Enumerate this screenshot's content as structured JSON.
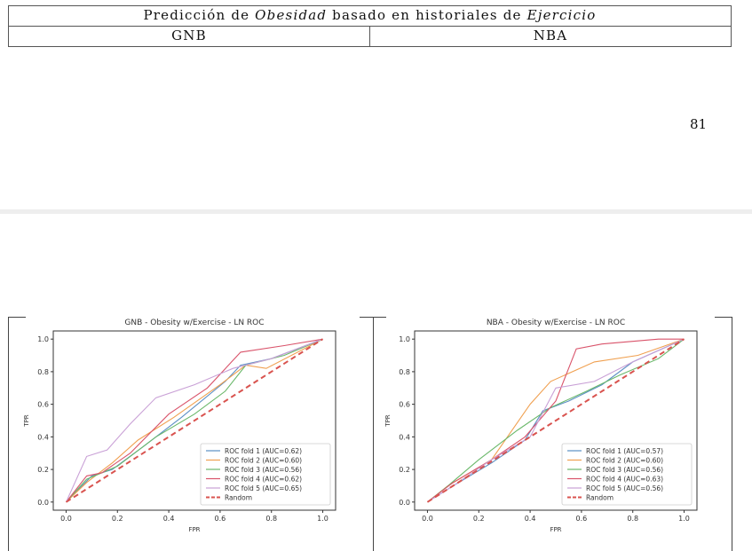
{
  "page": {
    "title_parts": [
      "Predicción de ",
      "Obesidad",
      " basado en historiales de ",
      "Ejercicio"
    ],
    "col_left": "GNB",
    "col_right": "NBA",
    "page_number": "81"
  },
  "chart_data": [
    {
      "type": "line",
      "title": "GNB - Obesity w/Exercise - LN ROC",
      "xlabel": "FPR",
      "ylabel": "TPR",
      "xlim": [
        -0.05,
        1.05
      ],
      "ylim": [
        -0.05,
        1.05
      ],
      "xticks": [
        "0.0",
        "0.2",
        "0.4",
        "0.6",
        "0.8",
        "1.0"
      ],
      "yticks": [
        "0.0",
        "0.2",
        "0.4",
        "0.6",
        "0.8",
        "1.0"
      ],
      "grid": false,
      "legend": "lower-right",
      "series": [
        {
          "name": "ROC fold 1 (AUC=0.62)",
          "color": "#5b8fc4",
          "x": [
            0,
            0.1,
            0.18,
            0.3,
            0.45,
            0.62,
            0.68,
            0.8,
            1.0
          ],
          "y": [
            0,
            0.16,
            0.2,
            0.34,
            0.52,
            0.74,
            0.84,
            0.88,
            1.0
          ]
        },
        {
          "name": "ROC fold 2 (AUC=0.60)",
          "color": "#f0a050",
          "x": [
            0,
            0.08,
            0.18,
            0.28,
            0.42,
            0.6,
            0.7,
            0.78,
            1.0
          ],
          "y": [
            0,
            0.12,
            0.24,
            0.38,
            0.52,
            0.72,
            0.84,
            0.82,
            1.0
          ]
        },
        {
          "name": "ROC fold 3 (AUC=0.56)",
          "color": "#6ab86a",
          "x": [
            0,
            0.08,
            0.2,
            0.35,
            0.5,
            0.62,
            0.7,
            0.85,
            1.0
          ],
          "y": [
            0,
            0.14,
            0.22,
            0.4,
            0.54,
            0.68,
            0.84,
            0.9,
            1.0
          ]
        },
        {
          "name": "ROC fold 4 (AUC=0.62)",
          "color": "#d9536a",
          "x": [
            0,
            0.08,
            0.14,
            0.25,
            0.4,
            0.55,
            0.68,
            0.85,
            1.0
          ],
          "y": [
            0,
            0.16,
            0.18,
            0.3,
            0.54,
            0.7,
            0.92,
            0.96,
            1.0
          ]
        },
        {
          "name": "ROC fold 5 (AUC=0.65)",
          "color": "#c9a0d6",
          "x": [
            0,
            0.08,
            0.16,
            0.25,
            0.35,
            0.5,
            0.65,
            0.8,
            1.0
          ],
          "y": [
            0,
            0.28,
            0.32,
            0.48,
            0.64,
            0.72,
            0.82,
            0.88,
            1.0
          ]
        },
        {
          "name": "Random",
          "color": "#d9534f",
          "dashed": true,
          "x": [
            0,
            1.0
          ],
          "y": [
            0,
            1.0
          ]
        }
      ]
    },
    {
      "type": "line",
      "title": "NBA - Obesity w/Exercise - LN ROC",
      "xlabel": "FPR",
      "ylabel": "TPR",
      "xlim": [
        -0.05,
        1.05
      ],
      "ylim": [
        -0.05,
        1.05
      ],
      "xticks": [
        "0.0",
        "0.2",
        "0.4",
        "0.6",
        "0.8",
        "1.0"
      ],
      "yticks": [
        "0.0",
        "0.2",
        "0.4",
        "0.6",
        "0.8",
        "1.0"
      ],
      "grid": false,
      "legend": "lower-right",
      "series": [
        {
          "name": "ROC fold 1 (AUC=0.57)",
          "color": "#5b8fc4",
          "x": [
            0,
            0.1,
            0.25,
            0.38,
            0.45,
            0.55,
            0.68,
            0.8,
            1.0
          ],
          "y": [
            0,
            0.1,
            0.24,
            0.38,
            0.56,
            0.62,
            0.72,
            0.86,
            1.0
          ]
        },
        {
          "name": "ROC fold 2 (AUC=0.60)",
          "color": "#f0a050",
          "x": [
            0,
            0.08,
            0.25,
            0.4,
            0.48,
            0.65,
            0.82,
            1.0
          ],
          "y": [
            0,
            0.1,
            0.26,
            0.6,
            0.74,
            0.86,
            0.9,
            1.0
          ]
        },
        {
          "name": "ROC fold 3 (AUC=0.56)",
          "color": "#6ab86a",
          "x": [
            0,
            0.08,
            0.2,
            0.35,
            0.48,
            0.62,
            0.75,
            0.9,
            1.0
          ],
          "y": [
            0,
            0.1,
            0.26,
            0.44,
            0.58,
            0.68,
            0.78,
            0.88,
            1.0
          ]
        },
        {
          "name": "ROC fold 4 (AUC=0.63)",
          "color": "#d9536a",
          "x": [
            0,
            0.1,
            0.25,
            0.38,
            0.5,
            0.58,
            0.68,
            0.9,
            1.0
          ],
          "y": [
            0,
            0.12,
            0.26,
            0.4,
            0.62,
            0.94,
            0.97,
            1.0,
            1.0
          ]
        },
        {
          "name": "ROC fold 5 (AUC=0.56)",
          "color": "#c9a0d6",
          "x": [
            0,
            0.1,
            0.25,
            0.4,
            0.5,
            0.65,
            0.8,
            1.0
          ],
          "y": [
            0,
            0.1,
            0.26,
            0.4,
            0.7,
            0.74,
            0.86,
            1.0
          ]
        },
        {
          "name": "Random",
          "color": "#d9534f",
          "dashed": true,
          "x": [
            0,
            1.0
          ],
          "y": [
            0,
            1.0
          ]
        }
      ]
    }
  ]
}
